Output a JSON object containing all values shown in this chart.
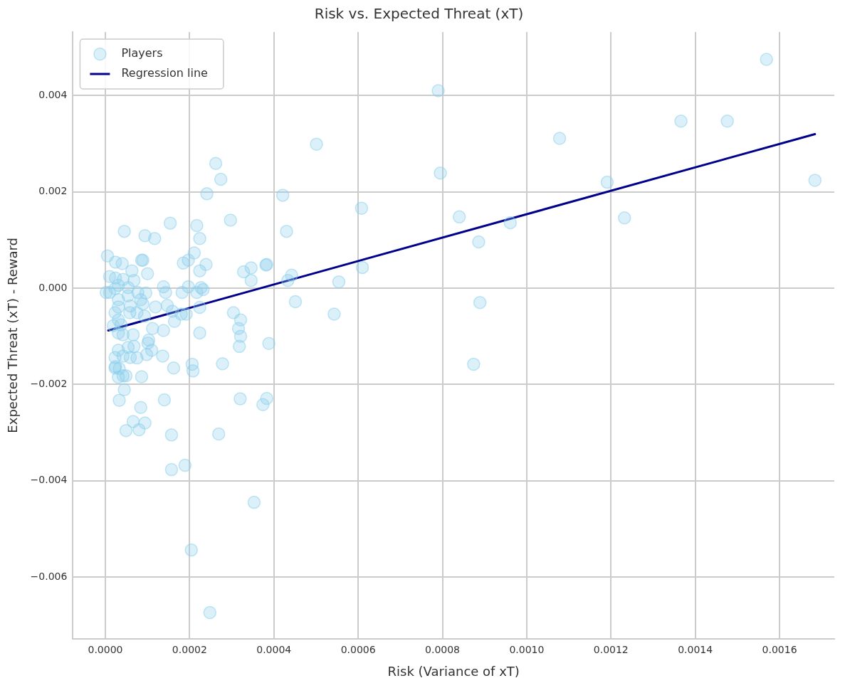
{
  "chart_data": {
    "type": "scatter",
    "title": "Risk vs. Expected Threat (xT)",
    "xlabel": "Risk (Variance of xT)",
    "ylabel": "Expected Threat (xT) - Reward",
    "xlim": [
      -7.7e-05,
      0.00173
    ],
    "ylim": [
      -0.00728,
      0.00532
    ],
    "xticks": [
      {
        "value": 0,
        "label": "0.0000"
      },
      {
        "value": 0.0002,
        "label": "0.0002"
      },
      {
        "value": 0.0004,
        "label": "0.0004"
      },
      {
        "value": 0.0006,
        "label": "0.0006"
      },
      {
        "value": 0.0008,
        "label": "0.0008"
      },
      {
        "value": 0.001,
        "label": "0.0010"
      },
      {
        "value": 0.0012,
        "label": "0.0012"
      },
      {
        "value": 0.0014,
        "label": "0.0014"
      },
      {
        "value": 0.0016,
        "label": "0.0016"
      }
    ],
    "yticks": [
      {
        "value": -0.006,
        "label": "−0.006"
      },
      {
        "value": -0.004,
        "label": "−0.004"
      },
      {
        "value": -0.002,
        "label": "−0.002"
      },
      {
        "value": 0,
        "label": "0.000"
      },
      {
        "value": 0.002,
        "label": "0.002"
      },
      {
        "value": 0.004,
        "label": "0.004"
      }
    ],
    "grid": true,
    "legend": "top left",
    "series": [
      {
        "name": "Players",
        "marker": "circle",
        "color": "#87ceeb",
        "x": [
          0.001569,
          0.001684,
          0.001476,
          0.001366,
          0.001078,
          0.001191,
          0.001232,
          0.000961,
          0.00079,
          0.000795,
          0.00084,
          0.000886,
          0.000889,
          0.000874,
          0.000608,
          0.00061,
          0.000554,
          0.000543,
          0.000501,
          0.000421,
          0.00043,
          0.000442,
          0.000433,
          0.000451,
          0.000381,
          0.000388,
          0.000262,
          0.000274,
          0.000241,
          0.000154,
          0.000297,
          0.000217,
          0.000224,
          9.4e-05,
          0.000117,
          0.000211,
          0.000197,
          0.000185,
          0.000239,
          0.000224,
          8.9e-05,
          0.0001,
          0.000328,
          0.000346,
          0.000346,
          0.000383,
          0.000138,
          0.000143,
          0.000182,
          0.000197,
          0.000217,
          0.000227,
          0.000232,
          0.000119,
          0.000147,
          0.000159,
          0.00018,
          0.000192,
          0.000224,
          0.000164,
          0.000112,
          0.000138,
          0.000224,
          0.000304,
          0.000321,
          0.000316,
          0.000321,
          0.000318,
          0.000101,
          0.00011,
          0.000136,
          0.000278,
          0.000206,
          0.000208,
          0.000162,
          8.6e-05,
          4.5e-05,
          3.3e-05,
          0.00014,
          0.00032,
          0.000383,
          0.000374,
          8.4e-05,
          6.6e-05,
          9.4e-05,
          8e-05,
          4.9e-05,
          0.000157,
          0.000269,
          0.000157,
          0.000189,
          0.000353,
          0.000204,
          0.000248,
          2.3e-05,
          3.3e-05,
          3.1e-05,
          4.9e-05,
          4.5e-05,
          5e-06,
          2.4e-05,
          4e-05,
          8.6e-05,
          6.3e-05,
          1e-05,
          2.4e-05,
          4.2e-05,
          6.8e-05,
          1e-05,
          2.3e-05,
          3.1e-05,
          5.4e-05,
          7.7e-05,
          9.6e-05,
          5.4e-05,
          3.1e-05,
          8.4e-05,
          8.9e-05,
          5.9e-05,
          3.1e-05,
          2.3e-05,
          5.8e-05,
          7.5e-05,
          9.3e-05,
          3.1e-05,
          1.9e-05,
          3.7e-05,
          3.1e-05,
          4.2e-05,
          6.6e-05,
          0.000103,
          5.4e-05,
          6.8e-05,
          3.1e-05,
          9.8e-05,
          2.3e-05,
          4.2e-05,
          5.9e-05,
          7.5e-05,
          2.4e-05,
          4.2e-05,
          2e-06
        ],
        "values": [
          0.00475,
          0.00224,
          0.00347,
          0.00347,
          0.00311,
          0.0022,
          0.00146,
          0.00136,
          0.0041,
          0.00239,
          0.00148,
          0.00096,
          -0.0003,
          -0.00158,
          0.00166,
          0.00043,
          0.00013,
          -0.00054,
          0.00299,
          0.00193,
          0.00118,
          0.00027,
          0.00016,
          -0.00028,
          0.00048,
          -0.00115,
          0.00259,
          0.00226,
          0.00196,
          0.00135,
          0.00141,
          0.0013,
          0.00103,
          0.00109,
          0.00103,
          0.00073,
          0.00058,
          0.00052,
          0.00049,
          0.00036,
          0.00058,
          0.0003,
          0.00034,
          0.00042,
          0.00016,
          0.00049,
          3e-05,
          -9e-05,
          -9e-05,
          3e-05,
          -9e-05,
          1e-05,
          -3e-05,
          -0.00039,
          -0.00036,
          -0.00048,
          -0.00054,
          -0.00054,
          -0.0004,
          -0.00069,
          -0.00084,
          -0.00088,
          -0.00093,
          -0.00051,
          -0.00066,
          -0.00084,
          -0.001,
          -0.00121,
          -0.00114,
          -0.00129,
          -0.00141,
          -0.00157,
          -0.00158,
          -0.00172,
          -0.00166,
          -0.00184,
          -0.00211,
          -0.00233,
          -0.00232,
          -0.0023,
          -0.00229,
          -0.00242,
          -0.00248,
          -0.00277,
          -0.0028,
          -0.00294,
          -0.00296,
          -0.00305,
          -0.00303,
          -0.00377,
          -0.00368,
          -0.00445,
          -0.00544,
          -0.00674,
          -0.00166,
          -0.00167,
          -0.00185,
          -0.00182,
          0.00118,
          0.00067,
          0.00054,
          0.00051,
          0.00058,
          0.00036,
          0.00024,
          0.00021,
          0.00018,
          0.00016,
          -9e-05,
          -1e-05,
          6e-05,
          1e-05,
          -9e-05,
          -0.0001,
          -0.00016,
          -0.00024,
          -0.00024,
          -0.00033,
          -0.00037,
          -0.00039,
          -0.00051,
          -0.00051,
          -0.00051,
          -0.00058,
          -0.00066,
          -0.00078,
          -0.00076,
          -0.00093,
          -0.00097,
          -0.00097,
          -0.00108,
          -0.00123,
          -0.00121,
          -0.00129,
          -0.00138,
          -0.00144,
          -0.00141,
          -0.00144,
          -0.00145,
          -0.00163,
          -0.00182,
          -9e-05
        ]
      },
      {
        "name": "Regression line",
        "type": "line",
        "color": "#00008b",
        "marker": "none",
        "line_style": "solid",
        "x": [
          7e-06,
          0.001684
        ],
        "values": [
          -0.00088,
          0.0032
        ]
      }
    ]
  }
}
